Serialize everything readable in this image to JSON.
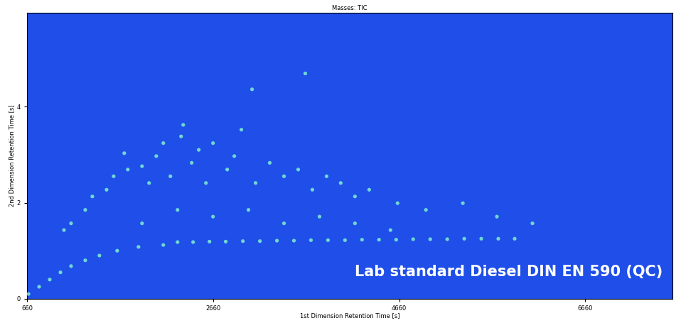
{
  "chart_data": {
    "type": "scatter",
    "title": "Masses: TIC",
    "x_label": "1st Dimension Retention Time [s]",
    "y_label": "2nd Dimension Retention Time [s]",
    "annotation": "Lab standard Diesel DIN EN 590 (QC)",
    "x": [
      675,
      790,
      904,
      1019,
      1133,
      1286,
      1438,
      1629,
      1858,
      2125,
      2278,
      2445,
      2621,
      2796,
      2980,
      3163,
      3346,
      3529,
      3712,
      3895,
      4078,
      4261,
      4444,
      4628,
      4811,
      4994,
      5177,
      5360,
      5543,
      5726,
      5902,
      1057,
      1133,
      1286,
      1362,
      1515,
      1591,
      1705,
      1743,
      1896,
      1972,
      2049,
      2125,
      2201,
      2316,
      2339,
      2430,
      2506,
      2583,
      2659,
      2812,
      2888,
      2964,
      3079,
      3117,
      3269,
      3422,
      3575,
      3651,
      3727,
      3880,
      4032,
      4185,
      4338,
      4643,
      4948,
      5345,
      5711,
      6093,
      1896,
      2278,
      2659,
      3040,
      3422,
      3804,
      4185,
      4567
    ],
    "y": [
      0.1,
      0.25,
      0.4,
      0.55,
      0.68,
      0.8,
      0.9,
      1.0,
      1.08,
      1.12,
      1.18,
      1.18,
      1.19,
      1.19,
      1.2,
      1.2,
      1.21,
      1.21,
      1.22,
      1.22,
      1.22,
      1.23,
      1.23,
      1.23,
      1.24,
      1.24,
      1.24,
      1.25,
      1.25,
      1.25,
      1.25,
      1.43,
      1.57,
      1.85,
      2.13,
      2.27,
      2.55,
      3.03,
      2.69,
      2.76,
      2.41,
      2.97,
      3.24,
      2.55,
      3.38,
      3.62,
      2.83,
      3.1,
      2.41,
      3.24,
      2.69,
      2.97,
      3.52,
      4.36,
      2.41,
      2.83,
      2.55,
      2.69,
      4.69,
      2.27,
      2.55,
      2.41,
      2.13,
      2.27,
      1.99,
      1.85,
      1.99,
      1.71,
      1.57,
      1.57,
      1.85,
      1.71,
      1.85,
      1.57,
      1.71,
      1.57,
      1.43
    ],
    "color": "#7ff0d0",
    "marker": "o",
    "xlim": [
      660,
      7600
    ],
    "ylim": [
      0,
      5.95
    ],
    "xticks": [
      660,
      2660,
      4660,
      6660
    ],
    "yticks": [
      0,
      2,
      4
    ],
    "grid": false
  }
}
